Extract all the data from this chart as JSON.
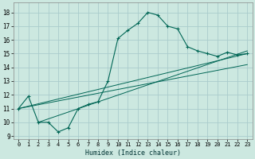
{
  "xlabel": "Humidex (Indice chaleur)",
  "bg_color": "#cce8e0",
  "grid_color": "#aacccc",
  "line_color": "#006655",
  "xlim": [
    -0.5,
    23.5
  ],
  "ylim": [
    8.8,
    18.7
  ],
  "yticks": [
    9,
    10,
    11,
    12,
    13,
    14,
    15,
    16,
    17,
    18
  ],
  "xticks": [
    0,
    1,
    2,
    3,
    4,
    5,
    6,
    7,
    8,
    9,
    10,
    11,
    12,
    13,
    14,
    15,
    16,
    17,
    18,
    19,
    20,
    21,
    22,
    23
  ],
  "series_marked_x": [
    0,
    1,
    2,
    3,
    4,
    5,
    6,
    7,
    8,
    9,
    10,
    11,
    12,
    13,
    14,
    15,
    16,
    17,
    18,
    19,
    20,
    21,
    22,
    23
  ],
  "series_marked_y": [
    11.0,
    11.9,
    10.0,
    10.0,
    9.3,
    9.6,
    11.0,
    11.3,
    11.5,
    13.0,
    16.1,
    16.7,
    17.2,
    18.0,
    17.8,
    17.0,
    16.8,
    15.5,
    15.2,
    15.0,
    14.8,
    15.1,
    14.9,
    15.0
  ],
  "line1_x": [
    0,
    23
  ],
  "line1_y": [
    11.0,
    14.2
  ],
  "line2_x": [
    0,
    23
  ],
  "line2_y": [
    11.0,
    15.0
  ],
  "line3_x": [
    2,
    23
  ],
  "line3_y": [
    10.0,
    15.2
  ]
}
